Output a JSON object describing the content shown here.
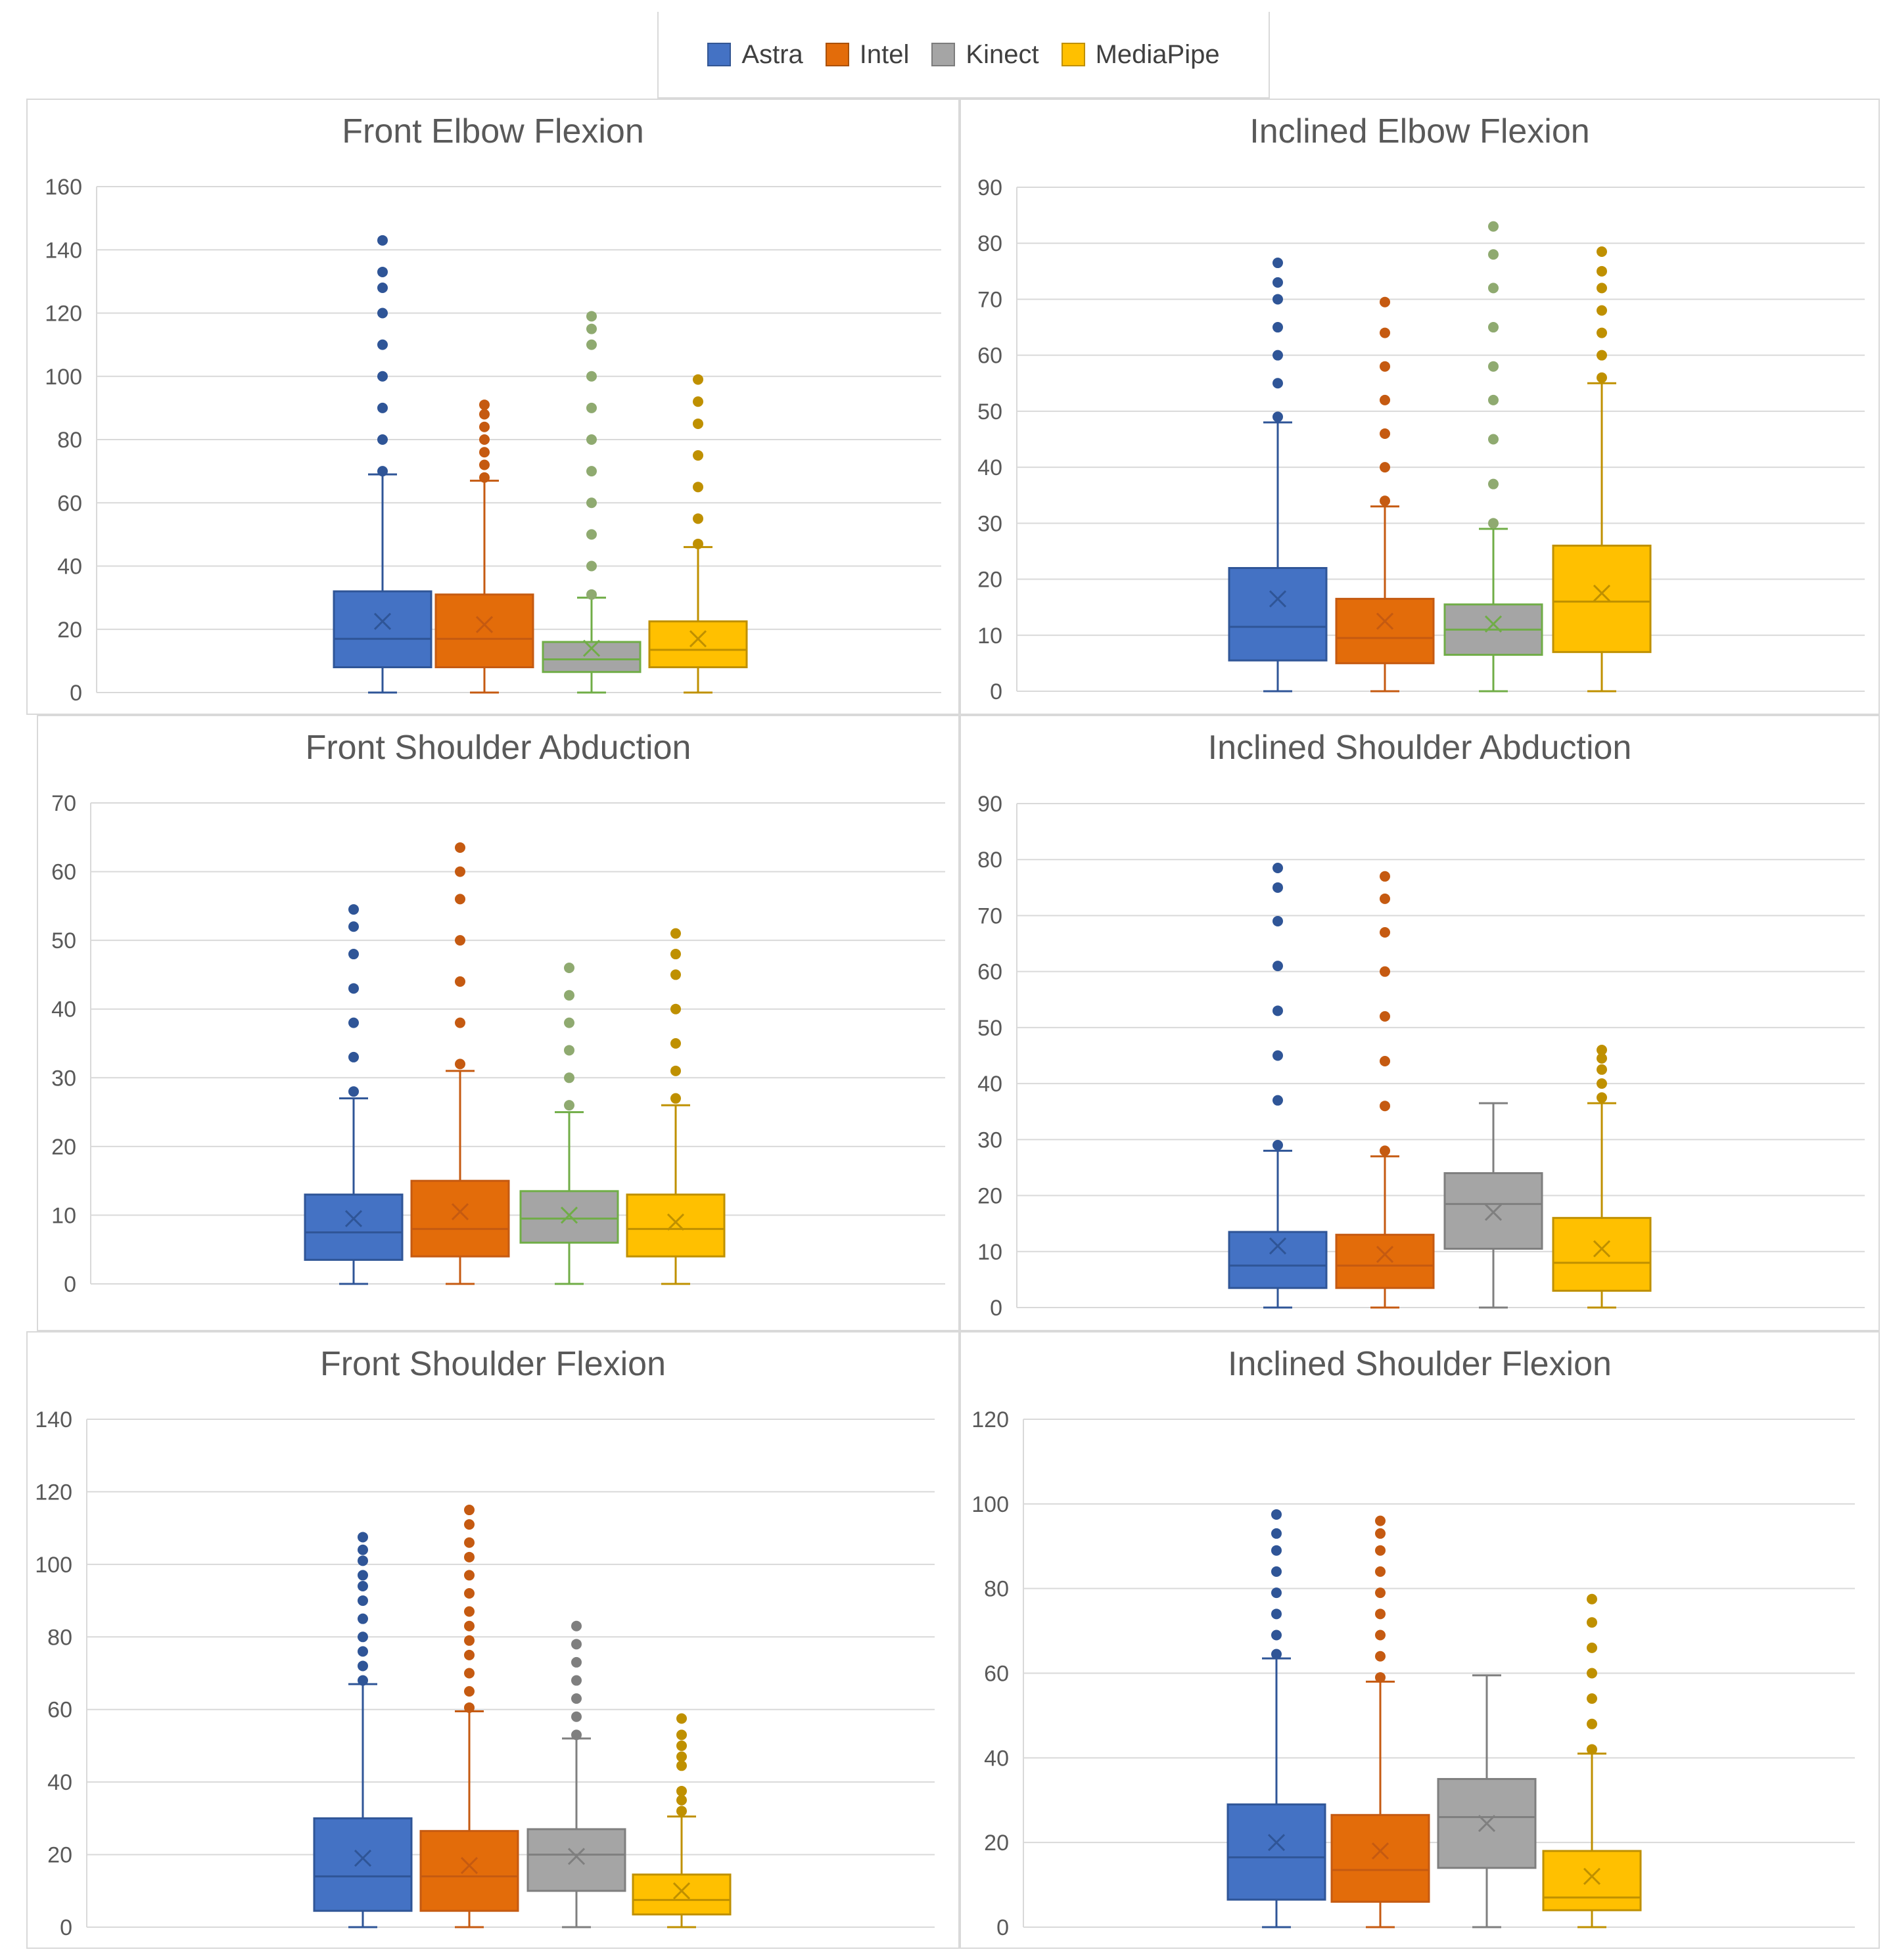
{
  "legend": [
    {
      "name": "Astra",
      "color": "#4472C4"
    },
    {
      "name": "Intel",
      "color": "#E36C0A"
    },
    {
      "name": "Kinect",
      "color": "#A5A5A5"
    },
    {
      "name": "MediaPipe",
      "color": "#FFC000"
    }
  ],
  "chart_data": [
    {
      "type": "box",
      "title": "Front Elbow Flexion",
      "ylim": [
        0,
        160
      ],
      "ystep": 20,
      "series": [
        {
          "name": "Astra",
          "min": 0,
          "q1": 8,
          "median": 17,
          "q3": 32,
          "mean": 22.5,
          "whisker_high": 69,
          "outliers": [
            70,
            80,
            90,
            100,
            110,
            120,
            128,
            133,
            143
          ]
        },
        {
          "name": "Intel",
          "min": 0,
          "q1": 8,
          "median": 17,
          "q3": 31,
          "mean": 21.5,
          "whisker_high": 67,
          "outliers": [
            68,
            72,
            76,
            80,
            84,
            88,
            91
          ]
        },
        {
          "name": "Kinect",
          "min": 0,
          "q1": 6.5,
          "median": 10.5,
          "q3": 16,
          "mean": 14,
          "whisker_high": 30,
          "outliers": [
            31,
            40,
            50,
            60,
            70,
            80,
            90,
            100,
            110,
            115,
            119
          ]
        },
        {
          "name": "MediaPipe",
          "min": 0,
          "q1": 8,
          "median": 13.5,
          "q3": 22.5,
          "mean": 17,
          "whisker_high": 46,
          "outliers": [
            47,
            55,
            65,
            75,
            85,
            92,
            99
          ]
        }
      ]
    },
    {
      "type": "box",
      "title": "Inclined Elbow Flexion",
      "ylim": [
        0,
        90
      ],
      "ystep": 10,
      "series": [
        {
          "name": "Astra",
          "min": 0,
          "q1": 5.5,
          "median": 11.5,
          "q3": 22,
          "mean": 16.5,
          "whisker_high": 48,
          "outliers": [
            49,
            55,
            60,
            65,
            70,
            73,
            76.5
          ]
        },
        {
          "name": "Intel",
          "min": 0,
          "q1": 5,
          "median": 9.5,
          "q3": 16.5,
          "mean": 12.5,
          "whisker_high": 33,
          "outliers": [
            34,
            40,
            46,
            52,
            58,
            64,
            69.5
          ]
        },
        {
          "name": "Kinect",
          "min": 0,
          "q1": 6.5,
          "median": 11,
          "q3": 15.5,
          "mean": 12,
          "whisker_high": 29,
          "outliers": [
            30,
            37,
            45,
            52,
            58,
            65,
            72,
            78,
            83
          ]
        },
        {
          "name": "MediaPipe",
          "min": 0,
          "q1": 7,
          "median": 16,
          "q3": 26,
          "mean": 17.5,
          "whisker_high": 55,
          "outliers": [
            56,
            60,
            64,
            68,
            72,
            75,
            78.5
          ]
        }
      ]
    },
    {
      "type": "box",
      "title": "Front Shoulder Abduction",
      "ylim": [
        0,
        70
      ],
      "ystep": 10,
      "series": [
        {
          "name": "Astra",
          "min": 0,
          "q1": 3.5,
          "median": 7.5,
          "q3": 13,
          "mean": 9.5,
          "whisker_high": 27,
          "outliers": [
            28,
            33,
            38,
            43,
            48,
            52,
            54.5
          ]
        },
        {
          "name": "Intel",
          "min": 0,
          "q1": 4,
          "median": 8,
          "q3": 15,
          "mean": 10.5,
          "whisker_high": 31,
          "outliers": [
            32,
            38,
            44,
            50,
            56,
            60,
            63.5
          ]
        },
        {
          "name": "Kinect",
          "min": 0,
          "q1": 6,
          "median": 9.5,
          "q3": 13.5,
          "mean": 10,
          "whisker_high": 25,
          "outliers": [
            26,
            30,
            34,
            38,
            42,
            46
          ]
        },
        {
          "name": "MediaPipe",
          "min": 0,
          "q1": 4,
          "median": 8,
          "q3": 13,
          "mean": 9,
          "whisker_high": 26,
          "outliers": [
            27,
            31,
            35,
            40,
            45,
            48,
            51
          ]
        }
      ]
    },
    {
      "type": "box",
      "title": "Inclined Shoulder Abduction",
      "ylim": [
        0,
        90
      ],
      "ystep": 10,
      "series": [
        {
          "name": "Astra",
          "min": 0,
          "q1": 3.5,
          "median": 7.5,
          "q3": 13.5,
          "mean": 11,
          "whisker_high": 28,
          "outliers": [
            29,
            37,
            45,
            53,
            61,
            69,
            75,
            78.5
          ]
        },
        {
          "name": "Intel",
          "min": 0,
          "q1": 3.5,
          "median": 7.5,
          "q3": 13,
          "mean": 9.5,
          "whisker_high": 27,
          "outliers": [
            28,
            36,
            44,
            52,
            60,
            67,
            73,
            77
          ]
        },
        {
          "name": "Kinect",
          "min": 0,
          "q1": 10.5,
          "median": 18.5,
          "q3": 24,
          "mean": 17,
          "whisker_high": 36.5,
          "outliers": []
        },
        {
          "name": "MediaPipe",
          "min": 0,
          "q1": 3,
          "median": 8,
          "q3": 16,
          "mean": 10.5,
          "whisker_high": 36.5,
          "outliers": [
            37.5,
            40,
            42.5,
            44.5,
            46
          ]
        }
      ]
    },
    {
      "type": "box",
      "title": "Front Shoulder Flexion",
      "ylim": [
        0,
        140
      ],
      "ystep": 20,
      "series": [
        {
          "name": "Astra",
          "min": 0,
          "q1": 4.5,
          "median": 14,
          "q3": 30,
          "mean": 19,
          "whisker_high": 67,
          "outliers": [
            68,
            72,
            76,
            80,
            85,
            90,
            94,
            97,
            101,
            104,
            107.5
          ]
        },
        {
          "name": "Intel",
          "min": 0,
          "q1": 4.5,
          "median": 14,
          "q3": 26.5,
          "mean": 17,
          "whisker_high": 59.5,
          "outliers": [
            60.5,
            65,
            70,
            75,
            79,
            83,
            87,
            92,
            97,
            102,
            106,
            111,
            115
          ]
        },
        {
          "name": "Kinect",
          "min": 0,
          "q1": 10,
          "median": 20,
          "q3": 27,
          "mean": 19.5,
          "whisker_high": 52,
          "outliers": [
            53,
            58,
            63,
            68,
            73,
            78,
            83
          ]
        },
        {
          "name": "MediaPipe",
          "min": 0,
          "q1": 3.5,
          "median": 7.5,
          "q3": 14.5,
          "mean": 10,
          "whisker_high": 30.5,
          "outliers": [
            32,
            35,
            37.5,
            44.5,
            47,
            50,
            53,
            57.5
          ]
        }
      ]
    },
    {
      "type": "box",
      "title": "Inclined Shoulder Flexion",
      "ylim": [
        0,
        120
      ],
      "ystep": 20,
      "series": [
        {
          "name": "Astra",
          "min": 0,
          "q1": 6.5,
          "median": 16.5,
          "q3": 29,
          "mean": 20,
          "whisker_high": 63.5,
          "outliers": [
            64.5,
            69,
            74,
            79,
            84,
            89,
            93,
            97.5
          ]
        },
        {
          "name": "Intel",
          "min": 0,
          "q1": 6,
          "median": 13.5,
          "q3": 26.5,
          "mean": 18,
          "whisker_high": 58,
          "outliers": [
            59,
            64,
            69,
            74,
            79,
            84,
            89,
            93,
            96
          ]
        },
        {
          "name": "Kinect",
          "min": 0,
          "q1": 14,
          "median": 26,
          "q3": 35,
          "mean": 24.5,
          "whisker_high": 59.5,
          "outliers": []
        },
        {
          "name": "MediaPipe",
          "min": 0,
          "q1": 4,
          "median": 7,
          "q3": 18,
          "mean": 12,
          "whisker_high": 41,
          "outliers": [
            42,
            48,
            54,
            60,
            66,
            72,
            77.5
          ]
        }
      ]
    }
  ]
}
